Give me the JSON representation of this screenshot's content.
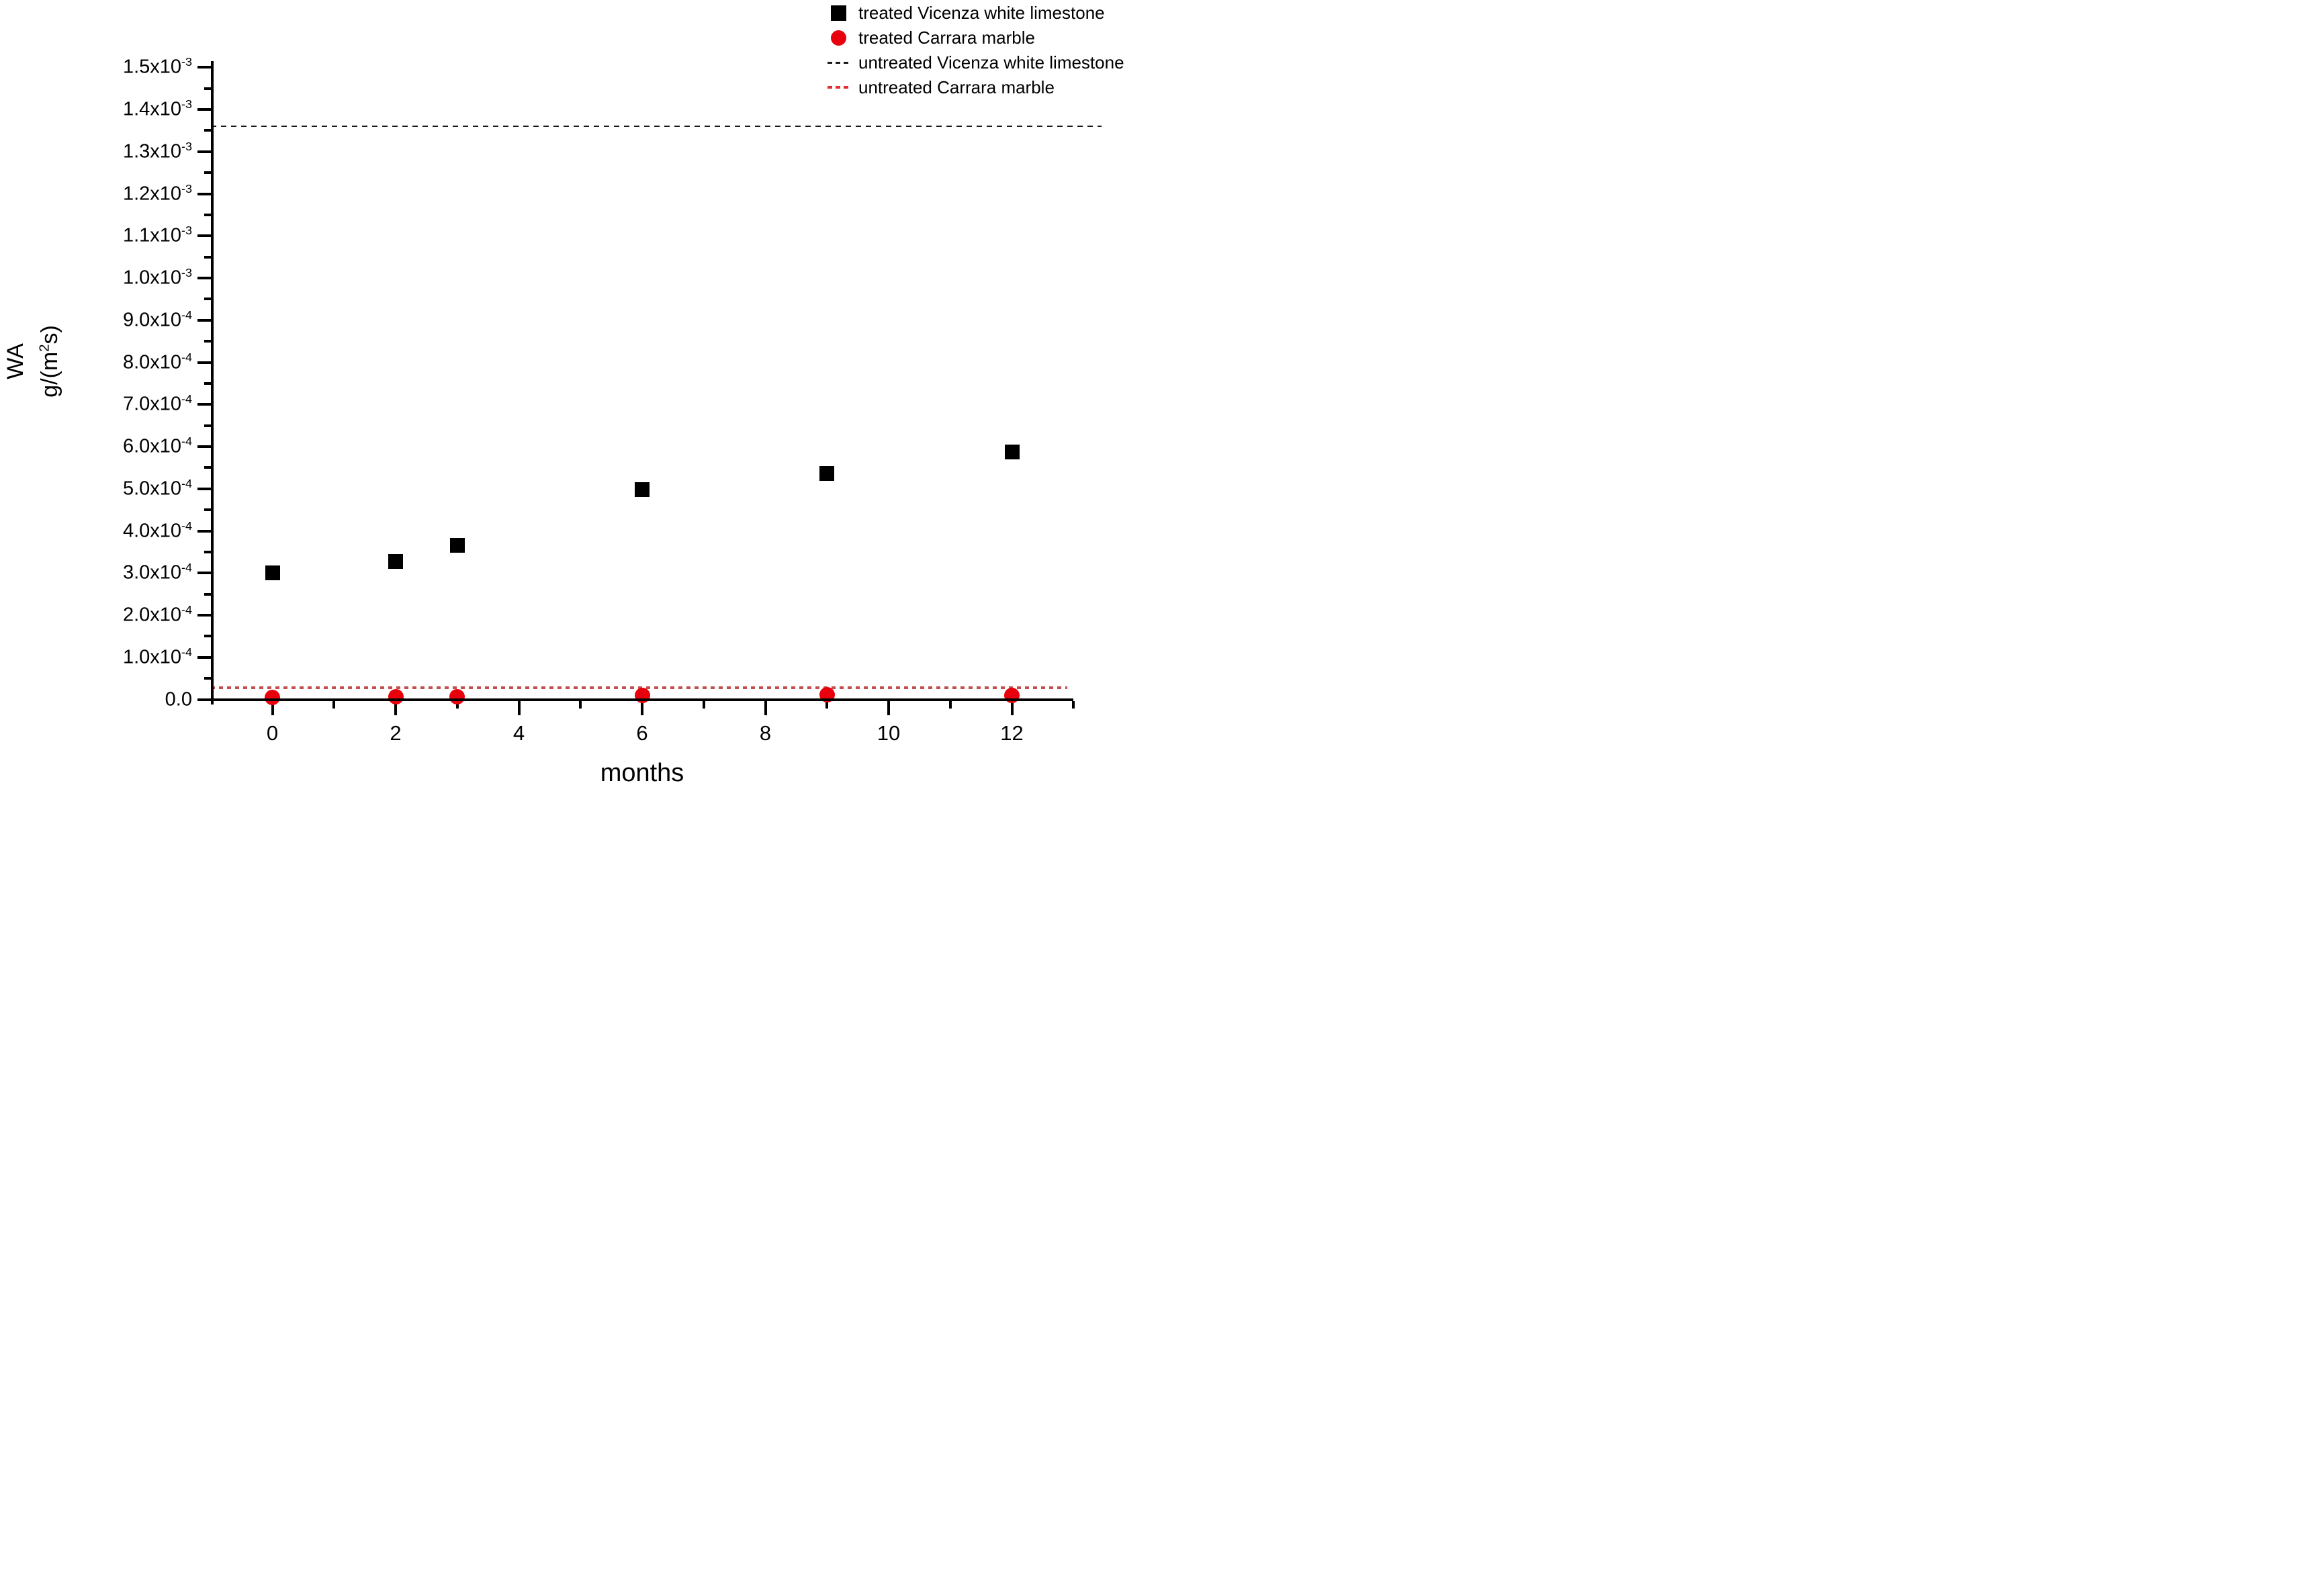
{
  "chart_data": {
    "type": "scatter",
    "title": "",
    "xlabel": "months",
    "ylabel_line1": "WA",
    "ylabel_unit_pre": "g/(m",
    "ylabel_unit_sup": "2",
    "ylabel_unit_post": "s)",
    "xlim": [
      -1,
      13
    ],
    "ylim": [
      0,
      0.0015
    ],
    "grid": false,
    "x_axis": {
      "major_ticks": [
        0,
        2,
        4,
        6,
        8,
        10,
        12
      ],
      "major_labels": [
        "0",
        "2",
        "4",
        "6",
        "8",
        "10",
        "12"
      ],
      "minor_ticks": [
        1,
        3,
        5,
        7,
        9,
        11,
        13
      ]
    },
    "y_axis": {
      "tick_unit": 0.0001,
      "major_ticks": [
        {
          "u": 0,
          "mant": "0.0",
          "exp": null
        },
        {
          "u": 1,
          "mant": "1.0",
          "exp": "-4"
        },
        {
          "u": 2,
          "mant": "2.0",
          "exp": "-4"
        },
        {
          "u": 3,
          "mant": "3.0",
          "exp": "-4"
        },
        {
          "u": 4,
          "mant": "4.0",
          "exp": "-4"
        },
        {
          "u": 5,
          "mant": "5.0",
          "exp": "-4"
        },
        {
          "u": 6,
          "mant": "6.0",
          "exp": "-4"
        },
        {
          "u": 7,
          "mant": "7.0",
          "exp": "-4"
        },
        {
          "u": 8,
          "mant": "8.0",
          "exp": "-4"
        },
        {
          "u": 9,
          "mant": "9.0",
          "exp": "-4"
        },
        {
          "u": 10,
          "mant": "1.0",
          "exp": "-3"
        },
        {
          "u": 11,
          "mant": "1.1",
          "exp": "-3"
        },
        {
          "u": 12,
          "mant": "1.2",
          "exp": "-3"
        },
        {
          "u": 13,
          "mant": "1.3",
          "exp": "-3"
        },
        {
          "u": 14,
          "mant": "1.4",
          "exp": "-3"
        },
        {
          "u": 15,
          "mant": "1.5",
          "exp": "-3"
        }
      ]
    },
    "series": [
      {
        "name": "treated Vicenza white limestone",
        "marker": "square",
        "color": "#000000",
        "x": [
          0,
          2,
          3,
          6,
          9,
          12
        ],
        "y": [
          0.0003,
          0.000327,
          0.000365,
          0.000498,
          0.000537,
          0.000588
        ]
      },
      {
        "name": "treated Carrara marble",
        "marker": "circle",
        "color": "#e8000d",
        "x": [
          0,
          2,
          3,
          6,
          9,
          12
        ],
        "y": [
          4e-06,
          6e-06,
          7e-06,
          9e-06,
          1.1e-05,
          1e-05
        ]
      }
    ],
    "ref_lines": [
      {
        "name": "untreated Vicenza white limestone",
        "style": "dashed",
        "color": "#1a1a1a",
        "y": 0.00136,
        "x_start": -1,
        "x_end": 13.45,
        "thickness": 2,
        "dash": [
          8,
          7
        ]
      },
      {
        "name": "untreated Carrara marble",
        "style": "dashed",
        "color": "#c25050",
        "y": 2.8e-05,
        "x_start": -1,
        "x_end": 12.9,
        "thickness": 4,
        "dash": [
          6,
          6
        ]
      }
    ],
    "legend": {
      "position": "top-right",
      "items": [
        {
          "label": "treated Vicenza white limestone",
          "swatch": "square",
          "color": "#000000"
        },
        {
          "label": "treated Carrara marble",
          "swatch": "circle",
          "color": "#e8000d"
        },
        {
          "label": "untreated Vicenza white limestone",
          "swatch": "dashed-line",
          "color": "#1a1a1a"
        },
        {
          "label": "untreated Carrara marble",
          "swatch": "dashed-line",
          "color": "#e03030"
        }
      ]
    }
  }
}
